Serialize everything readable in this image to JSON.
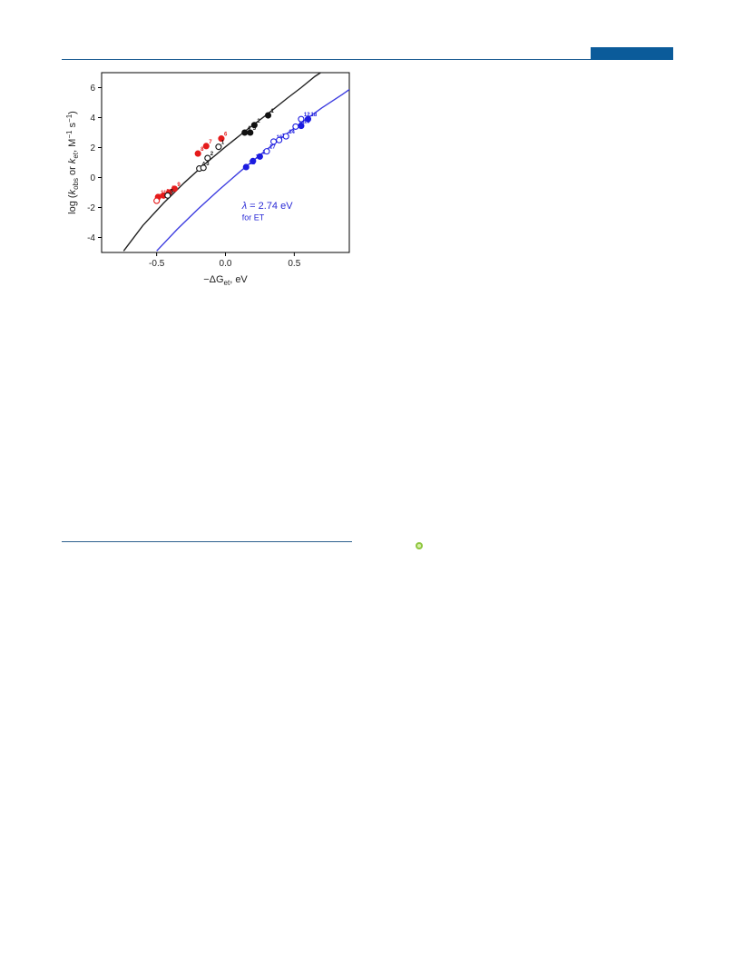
{
  "header": {
    "accent_color": "#0b5b9a"
  },
  "chart_data": {
    "type": "scatter",
    "xlabel": "−ΔG",
    "xlabel_sub": "et",
    "xlabel_unit": ", eV",
    "ylabel_parts": [
      "log (",
      "k",
      "obs",
      " or ",
      "k",
      "et",
      ",  M",
      "−1",
      " s",
      "−1",
      ")"
    ],
    "xlim": [
      -0.9,
      0.9
    ],
    "ylim": [
      -5,
      7
    ],
    "xticks": [
      -0.5,
      0.0,
      0.5
    ],
    "xtick_labels": [
      "-0.5",
      "0.0",
      "0.5"
    ],
    "yticks": [
      -4,
      -2,
      0,
      2,
      4,
      6
    ],
    "ytick_labels": [
      "-4",
      "-2",
      "0",
      "2",
      "4",
      "6"
    ],
    "grid": false,
    "annotation": {
      "lambda_symbol": "λ",
      "lambda_text": " = 2.74 eV",
      "sub_text": "for ET",
      "color": "#2a2ad6"
    },
    "curves": [
      {
        "color": "#222222",
        "points": [
          [
            -0.74,
            -4.9
          ],
          [
            -0.6,
            -3.2
          ],
          [
            -0.45,
            -1.7
          ],
          [
            -0.3,
            -0.35
          ],
          [
            -0.15,
            0.9
          ],
          [
            0.0,
            2.05
          ],
          [
            0.15,
            3.15
          ],
          [
            0.3,
            4.2
          ],
          [
            0.45,
            5.3
          ],
          [
            0.55,
            6.0
          ],
          [
            0.65,
            6.75
          ],
          [
            0.7,
            7.05
          ]
        ]
      },
      {
        "color": "#3d3de0",
        "points": [
          [
            -0.5,
            -4.9
          ],
          [
            -0.35,
            -3.45
          ],
          [
            -0.2,
            -2.1
          ],
          [
            -0.05,
            -0.85
          ],
          [
            0.1,
            0.35
          ],
          [
            0.25,
            1.5
          ],
          [
            0.4,
            2.6
          ],
          [
            0.55,
            3.65
          ],
          [
            0.7,
            4.65
          ],
          [
            0.85,
            5.55
          ],
          [
            0.92,
            6.0
          ]
        ]
      }
    ],
    "series": [
      {
        "color": "#e51b1b",
        "points": [
          {
            "x": -0.49,
            "y": -1.3,
            "open": false,
            "label": "11"
          },
          {
            "x": -0.45,
            "y": -1.2,
            "open": false,
            "label": "10"
          },
          {
            "x": -0.41,
            "y": -1.0,
            "open": false,
            "label": "5"
          },
          {
            "x": -0.37,
            "y": -0.75,
            "open": false,
            "label": "9"
          },
          {
            "x": -0.5,
            "y": -1.55,
            "open": true,
            "label": "7"
          },
          {
            "x": -0.2,
            "y": 1.6,
            "open": false,
            "label": "8"
          },
          {
            "x": -0.14,
            "y": 2.1,
            "open": false,
            "label": "7"
          },
          {
            "x": -0.03,
            "y": 2.6,
            "open": false,
            "label": "6"
          }
        ]
      },
      {
        "color": "#111111",
        "points": [
          {
            "x": -0.42,
            "y": -1.2,
            "open": true,
            "label": "5"
          },
          {
            "x": -0.19,
            "y": 0.6,
            "open": true,
            "label": "4"
          },
          {
            "x": -0.16,
            "y": 0.65,
            "open": true,
            "label": "3"
          },
          {
            "x": -0.13,
            "y": 1.3,
            "open": true,
            "label": "2"
          },
          {
            "x": -0.05,
            "y": 2.05,
            "open": true,
            "label": "1"
          },
          {
            "x": 0.14,
            "y": 3.0,
            "open": false,
            "label": "4"
          },
          {
            "x": 0.18,
            "y": 3.0,
            "open": false,
            "label": "3"
          },
          {
            "x": 0.21,
            "y": 3.5,
            "open": false,
            "label": "2"
          },
          {
            "x": 0.31,
            "y": 4.15,
            "open": false,
            "label": "1"
          }
        ]
      },
      {
        "color": "#1c1ce0",
        "points": [
          {
            "x": 0.15,
            "y": 0.7,
            "open": false,
            "label": "22"
          },
          {
            "x": 0.2,
            "y": 1.1,
            "open": false,
            "label": "21"
          },
          {
            "x": 0.25,
            "y": 1.4,
            "open": false,
            "label": "20"
          },
          {
            "x": 0.3,
            "y": 1.75,
            "open": true,
            "label": "17"
          },
          {
            "x": 0.35,
            "y": 2.4,
            "open": true,
            "label": "16"
          },
          {
            "x": 0.39,
            "y": 2.5,
            "open": true,
            "label": "15"
          },
          {
            "x": 0.44,
            "y": 2.75,
            "open": true,
            "label": "14"
          },
          {
            "x": 0.51,
            "y": 3.4,
            "open": true,
            "label": "13"
          },
          {
            "x": 0.55,
            "y": 3.9,
            "open": true,
            "label": "12"
          },
          {
            "x": 0.55,
            "y": 3.45,
            "open": false,
            "label": "19"
          },
          {
            "x": 0.6,
            "y": 3.9,
            "open": false,
            "label": "18"
          }
        ]
      }
    ]
  }
}
